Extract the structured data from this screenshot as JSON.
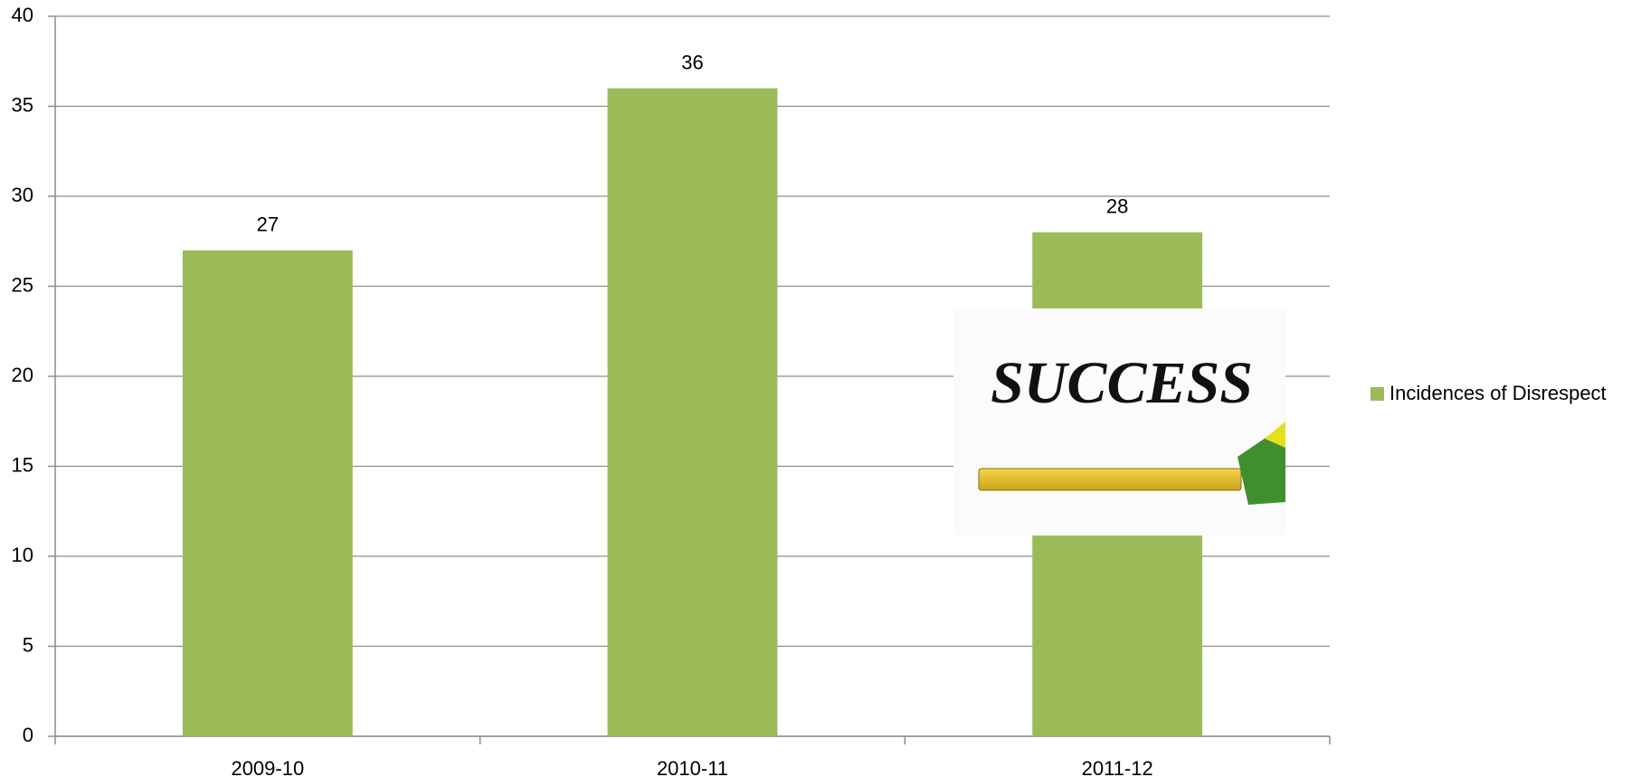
{
  "chart_data": {
    "type": "bar",
    "categories": [
      "2009-10",
      "2010-11",
      "2011-12"
    ],
    "series": [
      {
        "name": "Incidences of Disrespect",
        "color": "#9bbb59",
        "values": [
          27,
          36,
          28
        ]
      }
    ],
    "ylim": [
      0,
      40
    ],
    "yticks": [
      0,
      5,
      10,
      15,
      20,
      25,
      30,
      35,
      40
    ],
    "grid": true,
    "legend": "right",
    "annotations": [
      "SUCCESS"
    ]
  }
}
